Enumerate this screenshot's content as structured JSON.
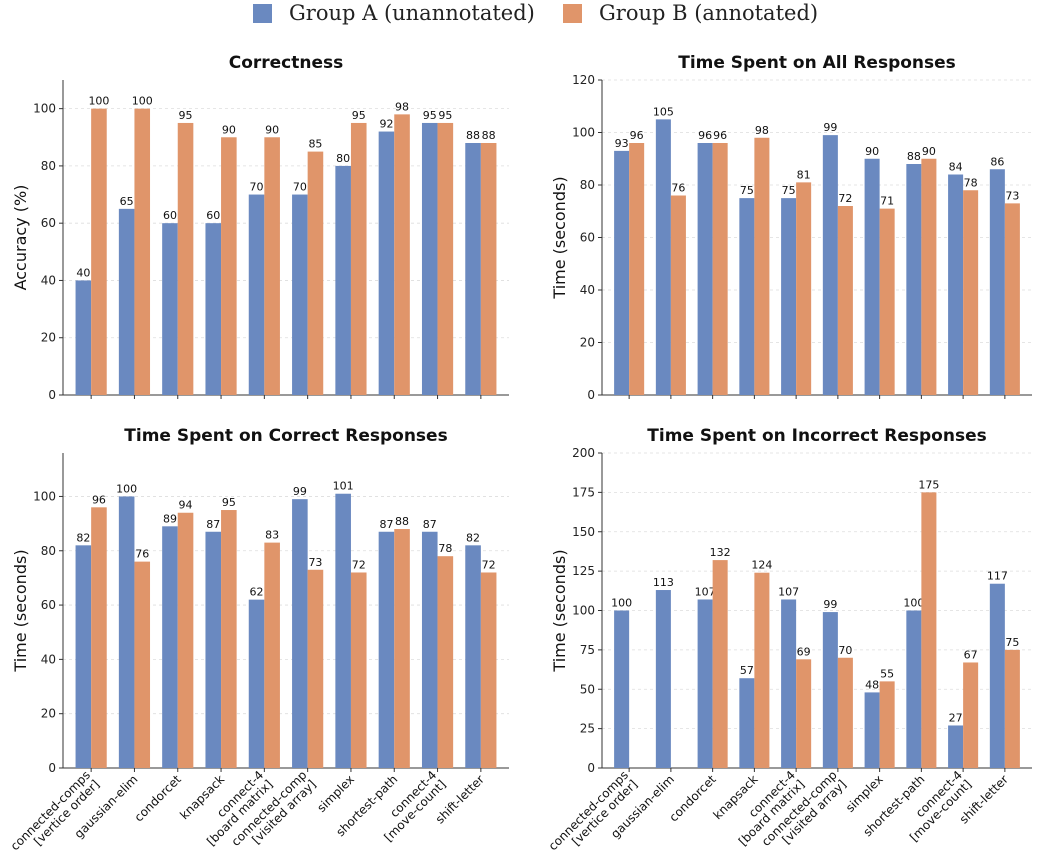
{
  "legend": [
    {
      "label": "Group A (unannotated)",
      "color": "#6a89c0"
    },
    {
      "label": "Group B (annotated)",
      "color": "#e0956a"
    }
  ],
  "chart_data": [
    {
      "type": "bar",
      "title": "Correctness",
      "ylabel": "Accuracy (%)",
      "xlabel": "",
      "ylim": [
        0,
        110
      ],
      "yticks": [
        0,
        20,
        40,
        60,
        80,
        100
      ],
      "grid": "horizontal",
      "categories": [
        "connected-comps\n[vertice order]",
        "gaussian-elim",
        "condorcet",
        "knapsack",
        "connect-4\n[board matrix]",
        "connected-comp\n[visited array]",
        "simplex",
        "shortest-path",
        "connect-4\n[move-count]",
        "shift-letter"
      ],
      "series": [
        {
          "name": "Group A (unannotated)",
          "values": [
            40,
            65,
            60,
            60,
            70,
            70,
            80,
            92,
            95,
            88
          ]
        },
        {
          "name": "Group B (annotated)",
          "values": [
            100,
            100,
            95,
            90,
            90,
            85,
            95,
            98,
            95,
            88
          ]
        }
      ]
    },
    {
      "type": "bar",
      "title": "Time Spent on All Responses",
      "ylabel": "Time (seconds)",
      "xlabel": "",
      "ylim": [
        0,
        120
      ],
      "yticks": [
        0,
        20,
        40,
        60,
        80,
        100,
        120
      ],
      "grid": "horizontal",
      "categories": [
        "connected-comps\n[vertice order]",
        "gaussian-elim",
        "condorcet",
        "knapsack",
        "connect-4\n[board matrix]",
        "connected-comp\n[visited array]",
        "simplex",
        "shortest-path",
        "connect-4\n[move-count]",
        "shift-letter"
      ],
      "series": [
        {
          "name": "Group A (unannotated)",
          "values": [
            93,
            105,
            96,
            75,
            75,
            99,
            90,
            88,
            84,
            86
          ]
        },
        {
          "name": "Group B (annotated)",
          "values": [
            96,
            76,
            96,
            98,
            81,
            72,
            71,
            90,
            78,
            73
          ]
        }
      ]
    },
    {
      "type": "bar",
      "title": "Time Spent on Correct Responses",
      "ylabel": "Time (seconds)",
      "xlabel": "",
      "ylim": [
        0,
        116
      ],
      "yticks": [
        0,
        20,
        40,
        60,
        80,
        100
      ],
      "grid": "horizontal",
      "categories": [
        "connected-comps\n[vertice order]",
        "gaussian-elim",
        "condorcet",
        "knapsack",
        "connect-4\n[board matrix]",
        "connected-comp\n[visited array]",
        "simplex",
        "shortest-path",
        "connect-4\n[move-count]",
        "shift-letter"
      ],
      "series": [
        {
          "name": "Group A (unannotated)",
          "values": [
            82,
            100,
            89,
            87,
            62,
            99,
            101,
            87,
            87,
            82
          ]
        },
        {
          "name": "Group B (annotated)",
          "values": [
            96,
            76,
            94,
            95,
            83,
            73,
            72,
            88,
            78,
            72
          ]
        }
      ]
    },
    {
      "type": "bar",
      "title": "Time Spent on Incorrect Responses",
      "ylabel": "Time (seconds)",
      "xlabel": "",
      "ylim": [
        0,
        200
      ],
      "yticks": [
        0,
        25,
        50,
        75,
        100,
        125,
        150,
        175,
        200
      ],
      "grid": "horizontal",
      "categories": [
        "connected-comps\n[vertice order]",
        "gaussian-elim",
        "condorcet",
        "knapsack",
        "connect-4\n[board matrix]",
        "connected-comp\n[visited array]",
        "simplex",
        "shortest-path",
        "connect-4\n[move-count]",
        "shift-letter"
      ],
      "series": [
        {
          "name": "Group A (unannotated)",
          "values": [
            100,
            113,
            107,
            57,
            107,
            99,
            48,
            100,
            27,
            117
          ]
        },
        {
          "name": "Group B (annotated)",
          "values": [
            null,
            null,
            132,
            124,
            69,
            70,
            55,
            175,
            67,
            75
          ]
        }
      ]
    }
  ]
}
